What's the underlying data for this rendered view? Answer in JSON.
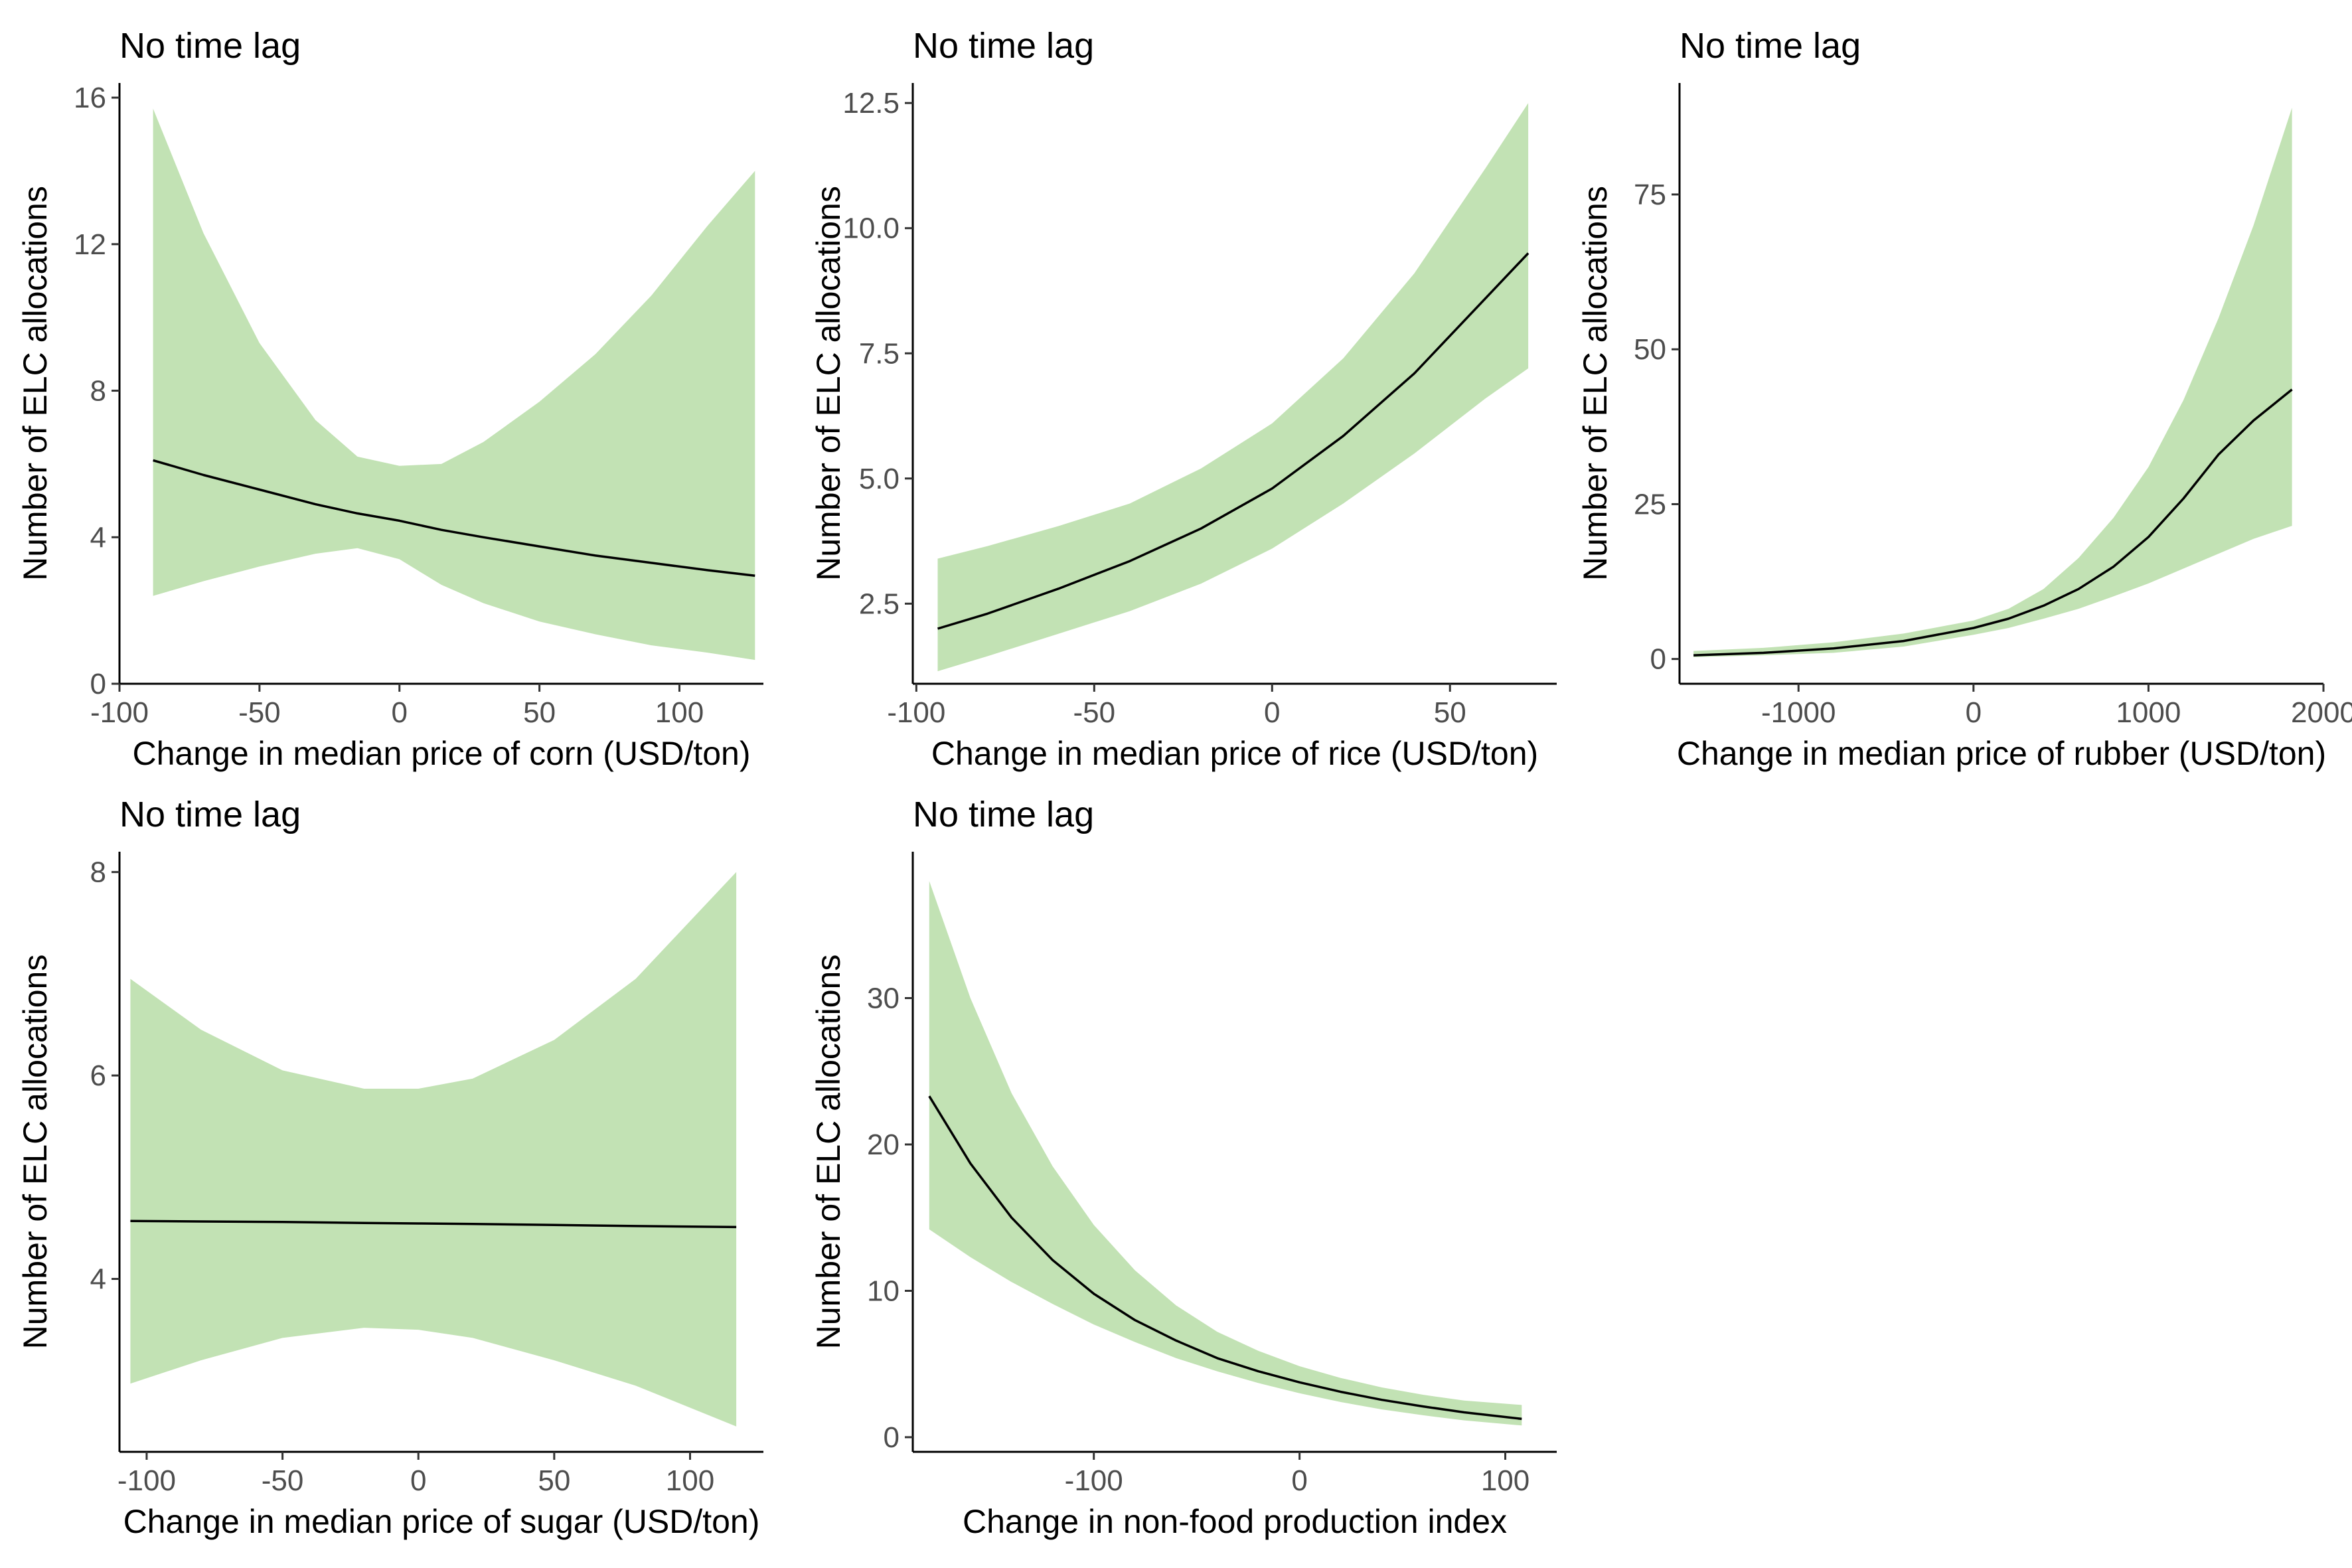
{
  "colors": {
    "ribbon": "#c2e2b4",
    "line": "#000000"
  },
  "chart_data": [
    {
      "type": "line",
      "title": "No time lag",
      "xlabel": "Change in median price of corn (USD/ton)",
      "ylabel": "Number of ELC allocations",
      "xlim": [
        -100,
        130
      ],
      "ylim": [
        0,
        16.4
      ],
      "xticks": [
        -100,
        -50,
        0,
        50,
        100
      ],
      "xtick_labels": [
        "-100",
        "-50",
        "0",
        "50",
        "100"
      ],
      "yticks": [
        0,
        4,
        8,
        12,
        16
      ],
      "ytick_labels": [
        "0",
        "4",
        "8",
        "12",
        "16"
      ],
      "series": [
        {
          "x": [
            -88,
            -70,
            -50,
            -30,
            -15,
            0,
            15,
            30,
            50,
            70,
            90,
            110,
            127
          ],
          "y": [
            6.1,
            5.7,
            5.3,
            4.9,
            4.65,
            4.45,
            4.2,
            4.0,
            3.75,
            3.5,
            3.3,
            3.1,
            2.95
          ],
          "lower": [
            2.4,
            2.8,
            3.2,
            3.55,
            3.7,
            3.4,
            2.7,
            2.2,
            1.7,
            1.35,
            1.05,
            0.85,
            0.65
          ],
          "upper": [
            15.7,
            12.3,
            9.3,
            7.2,
            6.2,
            5.95,
            6.0,
            6.6,
            7.7,
            9.0,
            10.6,
            12.5,
            14.0
          ]
        }
      ],
      "grid": false,
      "legend": "none"
    },
    {
      "type": "line",
      "title": "No time lag",
      "xlabel": "Change in median price of rice (USD/ton)",
      "ylabel": "Number of ELC allocations",
      "xlim": [
        -101,
        80
      ],
      "ylim": [
        0.9,
        12.9
      ],
      "xticks": [
        -100,
        -50,
        0,
        50
      ],
      "xtick_labels": [
        "-100",
        "-50",
        "0",
        "50"
      ],
      "yticks": [
        2.5,
        5.0,
        7.5,
        10.0,
        12.5
      ],
      "ytick_labels": [
        "2.5",
        "5.0",
        "7.5",
        "10.0",
        "12.5"
      ],
      "series": [
        {
          "x": [
            -94,
            -80,
            -60,
            -40,
            -20,
            0,
            20,
            40,
            60,
            72
          ],
          "y": [
            2.0,
            2.3,
            2.8,
            3.35,
            4.0,
            4.8,
            5.85,
            7.1,
            8.6,
            9.5
          ],
          "lower": [
            1.15,
            1.45,
            1.9,
            2.35,
            2.9,
            3.6,
            4.5,
            5.5,
            6.6,
            7.2
          ],
          "upper": [
            3.4,
            3.65,
            4.05,
            4.5,
            5.2,
            6.1,
            7.4,
            9.1,
            11.2,
            12.5
          ]
        }
      ],
      "grid": false,
      "legend": "none"
    },
    {
      "type": "line",
      "title": "No time lag",
      "xlabel": "Change in median price of rubber (USD/ton)",
      "ylabel": "Number of ELC allocations",
      "xlim": [
        -1680,
        2000
      ],
      "ylim": [
        -4,
        93
      ],
      "xticks": [
        -1000,
        0,
        1000,
        2000
      ],
      "xtick_labels": [
        "-1000",
        "0",
        "1000",
        "2000"
      ],
      "yticks": [
        0,
        25,
        50,
        75
      ],
      "ytick_labels": [
        "0",
        "25",
        "50",
        "75"
      ],
      "series": [
        {
          "x": [
            -1600,
            -1200,
            -800,
            -400,
            0,
            200,
            400,
            600,
            800,
            1000,
            1200,
            1400,
            1600,
            1820
          ],
          "y": [
            0.6,
            1.0,
            1.7,
            2.9,
            5.0,
            6.5,
            8.6,
            11.3,
            14.9,
            19.7,
            25.9,
            33.0,
            38.5,
            43.5
          ],
          "lower": [
            0.3,
            0.6,
            1.0,
            2.0,
            3.9,
            5.0,
            6.5,
            8.1,
            10.1,
            12.2,
            14.6,
            17.0,
            19.4,
            21.5
          ],
          "upper": [
            1.3,
            1.8,
            2.7,
            4.1,
            6.2,
            8.1,
            11.3,
            16.3,
            22.8,
            31.0,
            41.8,
            55.0,
            70.0,
            89.0
          ]
        }
      ],
      "grid": false,
      "legend": "none"
    },
    {
      "type": "line",
      "title": "No time lag",
      "xlabel": "Change in median price of sugar (USD/ton)",
      "ylabel": "Number of ELC allocations",
      "xlim": [
        -110,
        127
      ],
      "ylim": [
        2.3,
        8.2
      ],
      "xticks": [
        -100,
        -50,
        0,
        50,
        100
      ],
      "xtick_labels": [
        "-100",
        "-50",
        "0",
        "50",
        "100"
      ],
      "yticks": [
        4,
        6,
        8
      ],
      "ytick_labels": [
        "4",
        "6",
        "8"
      ],
      "series": [
        {
          "x": [
            -106,
            -80,
            -50,
            -20,
            0,
            20,
            50,
            80,
            117
          ],
          "y": [
            4.57,
            4.565,
            4.56,
            4.55,
            4.545,
            4.54,
            4.53,
            4.52,
            4.51
          ],
          "lower": [
            2.97,
            3.2,
            3.42,
            3.52,
            3.5,
            3.42,
            3.2,
            2.95,
            2.55
          ],
          "upper": [
            6.95,
            6.45,
            6.05,
            5.87,
            5.87,
            5.97,
            6.35,
            6.95,
            8.0
          ]
        }
      ],
      "grid": false,
      "legend": "none"
    },
    {
      "type": "line",
      "title": "No time lag",
      "xlabel": "Change in non-food production index",
      "ylabel": "Number of ELC allocations",
      "xlim": [
        -188,
        125
      ],
      "ylim": [
        -1,
        40
      ],
      "xticks": [
        -100,
        0,
        100
      ],
      "xtick_labels": [
        "-100",
        "0",
        "100"
      ],
      "yticks": [
        0,
        10,
        20,
        30
      ],
      "ytick_labels": [
        "0",
        "10",
        "20",
        "30"
      ],
      "series": [
        {
          "x": [
            -180,
            -160,
            -140,
            -120,
            -100,
            -80,
            -60,
            -40,
            -20,
            0,
            20,
            40,
            60,
            80,
            108
          ],
          "y": [
            23.3,
            18.7,
            15.0,
            12.1,
            9.8,
            8.0,
            6.6,
            5.4,
            4.5,
            3.75,
            3.1,
            2.55,
            2.1,
            1.7,
            1.25
          ],
          "lower": [
            14.2,
            12.3,
            10.6,
            9.1,
            7.7,
            6.5,
            5.4,
            4.5,
            3.7,
            3.0,
            2.4,
            1.9,
            1.5,
            1.15,
            0.8
          ],
          "upper": [
            38.0,
            30.0,
            23.5,
            18.5,
            14.5,
            11.4,
            9.0,
            7.2,
            5.9,
            4.85,
            4.05,
            3.4,
            2.9,
            2.5,
            2.2
          ]
        }
      ],
      "grid": false,
      "legend": "none"
    }
  ]
}
